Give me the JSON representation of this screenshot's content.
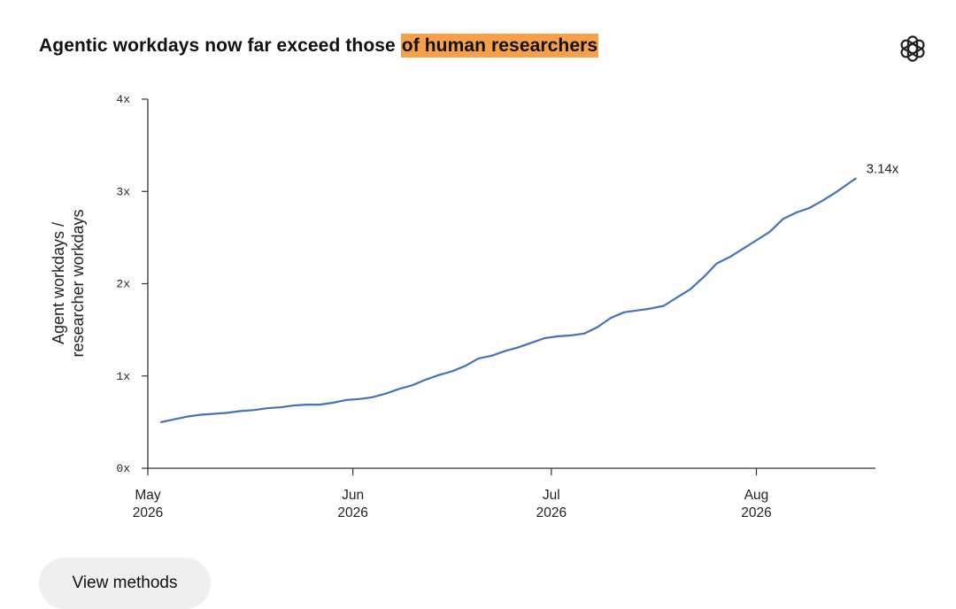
{
  "header": {
    "title_plain": "Agentic workdays now far exceed those ",
    "title_highlight": "of human researchers",
    "highlight_color": "#f6a04a",
    "logo_icon": "openai-logo-icon"
  },
  "button": {
    "label": "View methods"
  },
  "chart_data": {
    "type": "line",
    "ylabel": [
      "Agent workdays /",
      "researcher workdays"
    ],
    "ylim": [
      0,
      4
    ],
    "yticks": [
      {
        "value": 0,
        "label": "0x"
      },
      {
        "value": 1,
        "label": "1x"
      },
      {
        "value": 2,
        "label": "2x"
      },
      {
        "value": 3,
        "label": "3x"
      },
      {
        "value": 4,
        "label": "4x"
      }
    ],
    "xlim": [
      "2026-05-01",
      "2026-08-19"
    ],
    "xticks": [
      {
        "date": "2026-05-01",
        "label": [
          "May",
          "2026"
        ]
      },
      {
        "date": "2026-06-01",
        "label": [
          "Jun",
          "2026"
        ]
      },
      {
        "date": "2026-07-01",
        "label": [
          "Jul",
          "2026"
        ]
      },
      {
        "date": "2026-08-01",
        "label": [
          "Aug",
          "2026"
        ]
      }
    ],
    "line_color": "#4472b8",
    "grid": false,
    "series": [
      {
        "end_label": "3.14x",
        "points": [
          [
            "2026-05-03",
            0.5
          ],
          [
            "2026-05-05",
            0.53
          ],
          [
            "2026-05-07",
            0.56
          ],
          [
            "2026-05-09",
            0.58
          ],
          [
            "2026-05-11",
            0.59
          ],
          [
            "2026-05-13",
            0.6
          ],
          [
            "2026-05-15",
            0.62
          ],
          [
            "2026-05-17",
            0.63
          ],
          [
            "2026-05-19",
            0.65
          ],
          [
            "2026-05-21",
            0.66
          ],
          [
            "2026-05-23",
            0.68
          ],
          [
            "2026-05-25",
            0.69
          ],
          [
            "2026-05-27",
            0.69
          ],
          [
            "2026-05-29",
            0.71
          ],
          [
            "2026-05-31",
            0.74
          ],
          [
            "2026-06-02",
            0.75
          ],
          [
            "2026-06-04",
            0.77
          ],
          [
            "2026-06-06",
            0.81
          ],
          [
            "2026-06-08",
            0.86
          ],
          [
            "2026-06-10",
            0.9
          ],
          [
            "2026-06-12",
            0.96
          ],
          [
            "2026-06-14",
            1.01
          ],
          [
            "2026-06-16",
            1.05
          ],
          [
            "2026-06-18",
            1.11
          ],
          [
            "2026-06-20",
            1.19
          ],
          [
            "2026-06-22",
            1.22
          ],
          [
            "2026-06-24",
            1.27
          ],
          [
            "2026-06-26",
            1.31
          ],
          [
            "2026-06-28",
            1.36
          ],
          [
            "2026-06-30",
            1.41
          ],
          [
            "2026-07-02",
            1.43
          ],
          [
            "2026-07-04",
            1.44
          ],
          [
            "2026-07-06",
            1.46
          ],
          [
            "2026-07-08",
            1.53
          ],
          [
            "2026-07-10",
            1.63
          ],
          [
            "2026-07-12",
            1.69
          ],
          [
            "2026-07-14",
            1.71
          ],
          [
            "2026-07-16",
            1.73
          ],
          [
            "2026-07-18",
            1.76
          ],
          [
            "2026-07-20",
            1.85
          ],
          [
            "2026-07-22",
            1.94
          ],
          [
            "2026-07-24",
            2.07
          ],
          [
            "2026-07-26",
            2.22
          ],
          [
            "2026-07-28",
            2.29
          ],
          [
            "2026-07-30",
            2.38
          ],
          [
            "2026-08-01",
            2.47
          ],
          [
            "2026-08-03",
            2.56
          ],
          [
            "2026-08-05",
            2.7
          ],
          [
            "2026-08-07",
            2.77
          ],
          [
            "2026-08-09",
            2.82
          ],
          [
            "2026-08-11",
            2.9
          ],
          [
            "2026-08-13",
            2.99
          ],
          [
            "2026-08-15",
            3.09
          ],
          [
            "2026-08-16",
            3.14
          ]
        ]
      }
    ]
  }
}
